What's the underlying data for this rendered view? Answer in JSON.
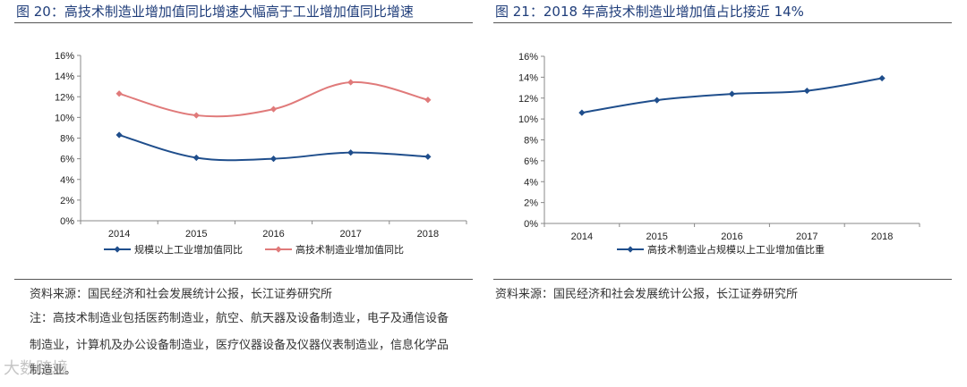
{
  "left": {
    "title": "图 20：高技术制造业增加值同比增速大幅高于工业增加值同比增速",
    "source": "资料来源：国民经济和社会发展统计公报，长江证券研究所",
    "note_lines": [
      "注：高技术制造业包括医药制造业，航空、航天器及设备制造业，电子及通信设备",
      "制造业，计算机及办公设备制造业，医疗仪器设备及仪器仪表制造业，信息化学品",
      "制造业。"
    ]
  },
  "right": {
    "title": "图 21：2018 年高技术制造业增加值占比接近 14%",
    "source": "资料来源：国民经济和社会发展统计公报，长江证券研究所"
  },
  "watermark": "大数跨境",
  "chart_data": [
    {
      "type": "line",
      "title": "",
      "categories": [
        "2014",
        "2015",
        "2016",
        "2017",
        "2018"
      ],
      "ylim": [
        0,
        16
      ],
      "yticks": [
        "0%",
        "2%",
        "4%",
        "6%",
        "8%",
        "10%",
        "12%",
        "14%",
        "16%"
      ],
      "series": [
        {
          "name": "规模以上工业增加值同比",
          "values": [
            8.3,
            6.1,
            6.0,
            6.6,
            6.2
          ],
          "color": "#1f4e8c",
          "marker": "diamond"
        },
        {
          "name": "高技术制造业增加值同比",
          "values": [
            12.3,
            10.2,
            10.8,
            13.4,
            11.7
          ],
          "color": "#e07a7a",
          "marker": "diamond"
        }
      ],
      "legend": "bottom"
    },
    {
      "type": "line",
      "title": "",
      "categories": [
        "2014",
        "2015",
        "2016",
        "2017",
        "2018"
      ],
      "ylim": [
        0,
        16
      ],
      "yticks": [
        "0%",
        "2%",
        "4%",
        "6%",
        "8%",
        "10%",
        "12%",
        "14%",
        "16%"
      ],
      "series": [
        {
          "name": "高技术制造业占规模以上工业增加值比重",
          "values": [
            10.6,
            11.8,
            12.4,
            12.7,
            13.9
          ],
          "color": "#1f4e8c",
          "marker": "diamond"
        }
      ],
      "legend": "bottom"
    }
  ]
}
